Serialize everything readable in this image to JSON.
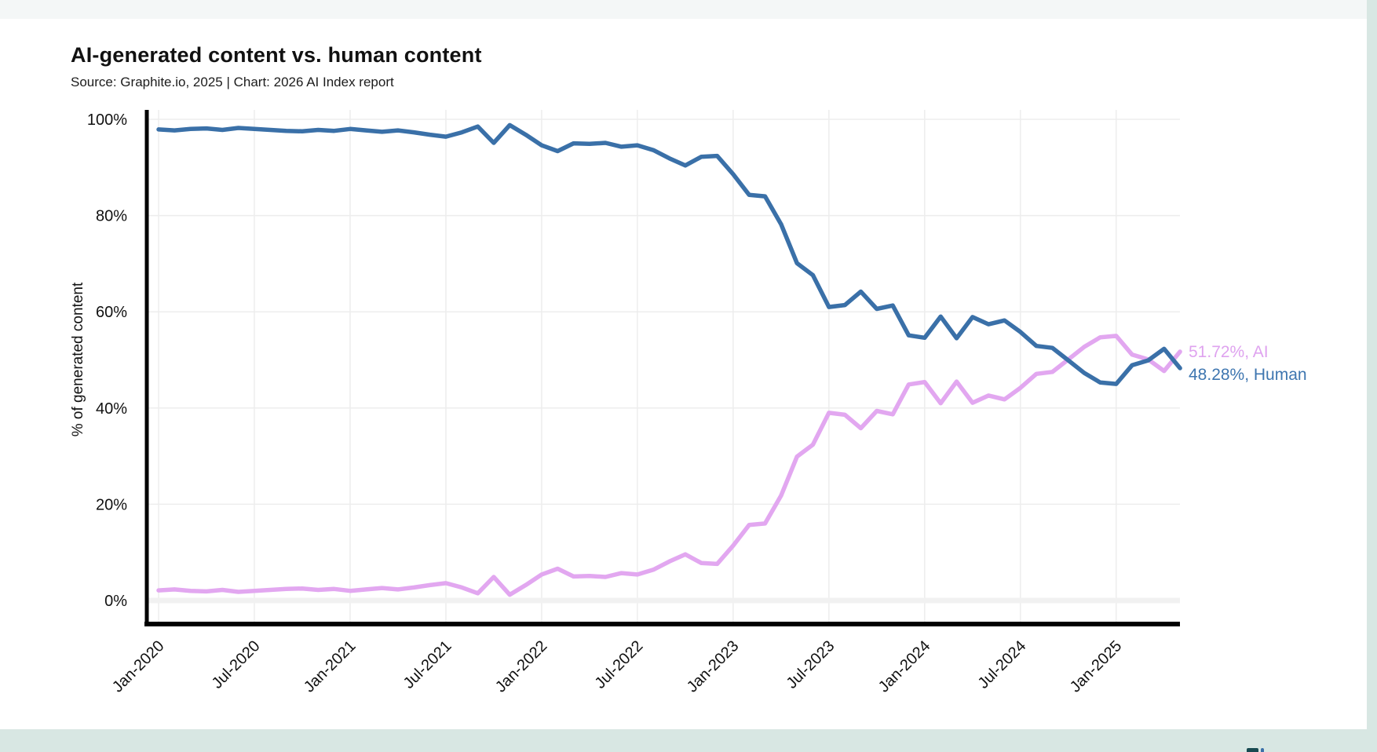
{
  "page": {
    "background_color": "#d8e7e3",
    "top_strip_color": "#f4f7f7",
    "card_color": "#ffffff"
  },
  "chart": {
    "title": "AI-generated content vs. human content",
    "subtitle": "Source: Graphite.io, 2025  | Chart: 2026 AI Index report",
    "y_axis_label": "% of generated content",
    "end_labels": {
      "ai": "51.72%, AI",
      "human": "48.28%, Human"
    }
  },
  "chart_data": {
    "type": "line",
    "title": "AI-generated content vs. human content",
    "subtitle": "Source: Graphite.io, 2025 | Chart: 2026 AI Index report",
    "xlabel": "",
    "ylabel": "% of generated content",
    "ylim": [
      0,
      100
    ],
    "grid": true,
    "legend_position": "end-of-line-labels",
    "y_tick_labels": [
      "0%",
      "20%",
      "40%",
      "60%",
      "80%",
      "100%"
    ],
    "x_tick_labels": [
      "Jan-2020",
      "Jul-2020",
      "Jan-2021",
      "Jul-2021",
      "Jan-2022",
      "Jul-2022",
      "Jan-2023",
      "Jul-2023",
      "Jan-2024",
      "Jul-2024",
      "Jan-2025"
    ],
    "x": [
      "Jan-2020",
      "Feb-2020",
      "Mar-2020",
      "Apr-2020",
      "May-2020",
      "Jun-2020",
      "Jul-2020",
      "Aug-2020",
      "Sep-2020",
      "Oct-2020",
      "Nov-2020",
      "Dec-2020",
      "Jan-2021",
      "Feb-2021",
      "Mar-2021",
      "Apr-2021",
      "May-2021",
      "Jun-2021",
      "Jul-2021",
      "Aug-2021",
      "Sep-2021",
      "Oct-2021",
      "Nov-2021",
      "Dec-2021",
      "Jan-2022",
      "Feb-2022",
      "Mar-2022",
      "Apr-2022",
      "May-2022",
      "Jun-2022",
      "Jul-2022",
      "Aug-2022",
      "Sep-2022",
      "Oct-2022",
      "Nov-2022",
      "Dec-2022",
      "Jan-2023",
      "Feb-2023",
      "Mar-2023",
      "Apr-2023",
      "May-2023",
      "Jun-2023",
      "Jul-2023",
      "Aug-2023",
      "Sep-2023",
      "Oct-2023",
      "Nov-2023",
      "Dec-2023",
      "Jan-2024",
      "Feb-2024",
      "Mar-2024",
      "Apr-2024",
      "May-2024",
      "Jun-2024",
      "Jul-2024",
      "Aug-2024",
      "Sep-2024",
      "Oct-2024",
      "Nov-2024",
      "Dec-2024",
      "Jan-2025",
      "Feb-2025",
      "Mar-2025",
      "Apr-2025",
      "May-2025"
    ],
    "series": [
      {
        "name": "AI",
        "color": "#e2a7f0",
        "final_label": "51.72%, AI",
        "final_value": 51.72,
        "values": [
          2.1,
          2.3,
          2.0,
          1.9,
          2.2,
          1.8,
          2.0,
          2.2,
          2.4,
          2.5,
          2.2,
          2.4,
          2.0,
          2.3,
          2.6,
          2.3,
          2.7,
          3.2,
          3.6,
          2.7,
          1.5,
          4.9,
          1.2,
          3.2,
          5.4,
          6.6,
          5.0,
          5.1,
          4.9,
          5.7,
          5.4,
          6.4,
          8.1,
          9.6,
          7.8,
          7.6,
          11.4,
          15.7,
          16.0,
          21.8,
          29.9,
          32.4,
          39.0,
          38.6,
          35.8,
          39.4,
          38.7,
          44.9,
          45.4,
          41.0,
          45.5,
          41.1,
          42.6,
          41.8,
          44.2,
          47.1,
          47.5,
          50.1,
          52.7,
          54.7,
          55.0,
          51.1,
          50.1,
          47.7,
          51.72
        ]
      },
      {
        "name": "Human",
        "color": "#3a70a8",
        "final_label": "48.28%, Human",
        "final_value": 48.28,
        "values": [
          97.9,
          97.7,
          98.0,
          98.1,
          97.8,
          98.2,
          98.0,
          97.8,
          97.6,
          97.5,
          97.8,
          97.6,
          98.0,
          97.7,
          97.4,
          97.7,
          97.3,
          96.8,
          96.4,
          97.3,
          98.5,
          95.1,
          98.8,
          96.8,
          94.6,
          93.4,
          95.0,
          94.9,
          95.1,
          94.3,
          94.6,
          93.6,
          91.9,
          90.4,
          92.2,
          92.4,
          88.6,
          84.3,
          84.0,
          78.2,
          70.1,
          67.6,
          61.0,
          61.4,
          64.2,
          60.6,
          61.3,
          55.1,
          54.6,
          59.0,
          54.5,
          58.9,
          57.4,
          58.2,
          55.8,
          52.9,
          52.5,
          49.9,
          47.3,
          45.3,
          45.0,
          48.9,
          49.9,
          52.3,
          48.28
        ]
      }
    ]
  }
}
